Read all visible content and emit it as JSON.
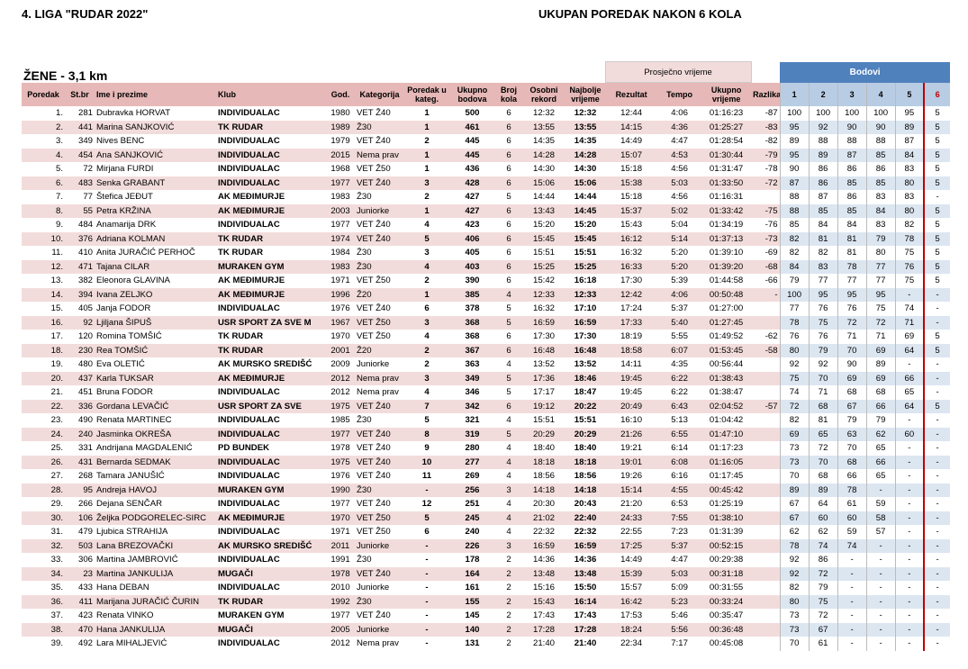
{
  "header": {
    "title": "4. LIGA  \"RUDAR 2022\"",
    "subtitle": "UKUPAN POREDAK NAKON 6 KOLA"
  },
  "table": {
    "section": "ŽENE - 3,1 km",
    "group_average": "Prosječno vrijeme",
    "group_points": "Bodovi",
    "columns": [
      "Poredak",
      "St.br",
      "Ime i prezime",
      "Klub",
      "God.",
      "Kategorija",
      "Poredak u kateg.",
      "Ukupno bodova",
      "Broj kola",
      "Osobni rekord",
      "Najbolje vrijeme",
      "Rezultat",
      "Tempo",
      "Ukupno vrijeme",
      "Razlika",
      "1",
      "2",
      "3",
      "4",
      "5",
      "6"
    ],
    "rows": [
      [
        "1.",
        "281",
        "Dubravka HORVAT",
        "INDIVIDUALAC",
        "1980",
        "VET Ž40",
        "1",
        "500",
        "6",
        "12:32",
        "12:32",
        "12:44",
        "4:06",
        "01:16:23",
        "-87",
        "100",
        "100",
        "100",
        "100",
        "95",
        "5"
      ],
      [
        "2.",
        "441",
        "Marina SANJKOVIĆ",
        "TK RUDAR",
        "1989",
        "Ž30",
        "1",
        "461",
        "6",
        "13:55",
        "13:55",
        "14:15",
        "4:36",
        "01:25:27",
        "-83",
        "95",
        "92",
        "90",
        "90",
        "89",
        "5"
      ],
      [
        "3.",
        "349",
        "Nives BENC",
        "INDIVIDUALAC",
        "1979",
        "VET Ž40",
        "2",
        "445",
        "6",
        "14:35",
        "14:35",
        "14:49",
        "4:47",
        "01:28:54",
        "-82",
        "89",
        "88",
        "88",
        "88",
        "87",
        "5"
      ],
      [
        "4.",
        "454",
        "Ana SANJKOVIĆ",
        "INDIVIDUALAC",
        "2015",
        "Nema prav",
        "1",
        "445",
        "6",
        "14:28",
        "14:28",
        "15:07",
        "4:53",
        "01:30:44",
        "-79",
        "95",
        "89",
        "87",
        "85",
        "84",
        "5"
      ],
      [
        "5.",
        "72",
        "Mirjana FURDI",
        "INDIVIDUALAC",
        "1968",
        "VET Ž50",
        "1",
        "436",
        "6",
        "14:30",
        "14:30",
        "15:18",
        "4:56",
        "01:31:47",
        "-78",
        "90",
        "86",
        "86",
        "86",
        "83",
        "5"
      ],
      [
        "6.",
        "483",
        "Senka GRABANT",
        "INDIVIDUALAC",
        "1977",
        "VET Ž40",
        "3",
        "428",
        "6",
        "15:06",
        "15:06",
        "15:38",
        "5:03",
        "01:33:50",
        "-72",
        "87",
        "86",
        "85",
        "85",
        "80",
        "5"
      ],
      [
        "7.",
        "77",
        "Štefica JEĐUT",
        "AK MEĐIMURJE",
        "1983",
        "Ž30",
        "2",
        "427",
        "5",
        "14:44",
        "14:44",
        "15:18",
        "4:56",
        "01:16:31",
        null,
        "88",
        "87",
        "86",
        "83",
        "83",
        "-"
      ],
      [
        "8.",
        "55",
        "Petra KRŽINA",
        "AK MEĐIMURJE",
        "2003",
        "Juniorke",
        "1",
        "427",
        "6",
        "13:43",
        "14:45",
        "15:37",
        "5:02",
        "01:33:42",
        "-75",
        "88",
        "85",
        "85",
        "84",
        "80",
        "5"
      ],
      [
        "9.",
        "484",
        "Anamarija DRK",
        "INDIVIDUALAC",
        "1977",
        "VET Ž40",
        "4",
        "423",
        "6",
        "15:20",
        "15:20",
        "15:43",
        "5:04",
        "01:34:19",
        "-76",
        "85",
        "84",
        "84",
        "83",
        "82",
        "5"
      ],
      [
        "10.",
        "376",
        "Adriana KOLMAN",
        "TK RUDAR",
        "1974",
        "VET Ž40",
        "5",
        "406",
        "6",
        "15:45",
        "15:45",
        "16:12",
        "5:14",
        "01:37:13",
        "-73",
        "82",
        "81",
        "81",
        "79",
        "78",
        "5"
      ],
      [
        "11.",
        "410",
        "Anita JURAČIĆ PERHOČ",
        "TK RUDAR",
        "1984",
        "Ž30",
        "3",
        "405",
        "6",
        "15:51",
        "15:51",
        "16:32",
        "5:20",
        "01:39:10",
        "-69",
        "82",
        "82",
        "81",
        "80",
        "75",
        "5"
      ],
      [
        "12.",
        "471",
        "Tajana CILAR",
        "MURAKEN GYM",
        "1983",
        "Ž30",
        "4",
        "403",
        "6",
        "15:25",
        "15:25",
        "16:33",
        "5:20",
        "01:39:20",
        "-68",
        "84",
        "83",
        "78",
        "77",
        "76",
        "5"
      ],
      [
        "13.",
        "382",
        "Eleonora GLAVINA",
        "AK MEĐIMURJE",
        "1971",
        "VET Ž50",
        "2",
        "390",
        "6",
        "15:42",
        "16:18",
        "17:30",
        "5:39",
        "01:44:58",
        "-66",
        "79",
        "77",
        "77",
        "77",
        "75",
        "5"
      ],
      [
        "14.",
        "394",
        "Ivana ZELJKO",
        "AK MEĐIMURJE",
        "1996",
        "Ž20",
        "1",
        "385",
        "4",
        "12:33",
        "12:33",
        "12:42",
        "4:06",
        "00:50:48",
        "-",
        "100",
        "95",
        "95",
        "95",
        "-",
        "-"
      ],
      [
        "15.",
        "405",
        "Janja FODOR",
        "INDIVIDUALAC",
        "1976",
        "VET Ž40",
        "6",
        "378",
        "5",
        "16:32",
        "17:10",
        "17:24",
        "5:37",
        "01:27:00",
        null,
        "77",
        "76",
        "76",
        "75",
        "74",
        "-"
      ],
      [
        "16.",
        "92",
        "Ljiljana ŠIPUŠ",
        "USR SPORT ZA SVE M",
        "1967",
        "VET Ž50",
        "3",
        "368",
        "5",
        "16:59",
        "16:59",
        "17:33",
        "5:40",
        "01:27:45",
        null,
        "78",
        "75",
        "72",
        "72",
        "71",
        "-"
      ],
      [
        "17.",
        "120",
        "Romina TOMŠIĆ",
        "TK RUDAR",
        "1970",
        "VET Ž50",
        "4",
        "368",
        "6",
        "17:30",
        "17:30",
        "18:19",
        "5:55",
        "01:49:52",
        "-62",
        "76",
        "76",
        "71",
        "71",
        "69",
        "5"
      ],
      [
        "18.",
        "230",
        "Rea TOMŠIĆ",
        "TK RUDAR",
        "2001",
        "Ž20",
        "2",
        "367",
        "6",
        "16:48",
        "16:48",
        "18:58",
        "6:07",
        "01:53:45",
        "-58",
        "80",
        "79",
        "70",
        "69",
        "64",
        "5"
      ],
      [
        "19.",
        "480",
        "Eva OLETIĆ",
        "AK MURSKO SREDIŠĆ",
        "2009",
        "Juniorke",
        "2",
        "363",
        "4",
        "13:52",
        "13:52",
        "14:11",
        "4:35",
        "00:56:44",
        null,
        "92",
        "92",
        "90",
        "89",
        "-",
        "-"
      ],
      [
        "20.",
        "437",
        "Karla TUKSAR",
        "AK MEĐIMURJE",
        "2012",
        "Nema prav",
        "3",
        "349",
        "5",
        "17:36",
        "18:46",
        "19:45",
        "6:22",
        "01:38:43",
        null,
        "75",
        "70",
        "69",
        "69",
        "66",
        "-"
      ],
      [
        "21.",
        "451",
        "Bruna FODOR",
        "INDIVIDUALAC",
        "2012",
        "Nema prav",
        "4",
        "346",
        "5",
        "17:17",
        "18:47",
        "19:45",
        "6:22",
        "01:38:47",
        null,
        "74",
        "71",
        "68",
        "68",
        "65",
        "-"
      ],
      [
        "22.",
        "336",
        "Gordana LEVAČIĆ",
        "USR SPORT ZA SVE",
        "1975",
        "VET Ž40",
        "7",
        "342",
        "6",
        "19:12",
        "20:22",
        "20:49",
        "6:43",
        "02:04:52",
        "-57",
        "72",
        "68",
        "67",
        "66",
        "64",
        "5"
      ],
      [
        "23.",
        "490",
        "Renata MARTINEC",
        "INDIVIDUALAC",
        "1985",
        "Ž30",
        "5",
        "321",
        "4",
        "15:51",
        "15:51",
        "16:10",
        "5:13",
        "01:04:42",
        null,
        "82",
        "81",
        "79",
        "79",
        "-",
        "-"
      ],
      [
        "24.",
        "240",
        "Jasminka OKREŠA",
        "INDIVIDUALAC",
        "1977",
        "VET Ž40",
        "8",
        "319",
        "5",
        "20:29",
        "20:29",
        "21:26",
        "6:55",
        "01:47:10",
        null,
        "69",
        "65",
        "63",
        "62",
        "60",
        "-"
      ],
      [
        "25.",
        "331",
        "Andrijana MAGDALENIĆ",
        "PD BUNDEK",
        "1978",
        "VET Ž40",
        "9",
        "280",
        "4",
        "18:40",
        "18:40",
        "19:21",
        "6:14",
        "01:17:23",
        null,
        "73",
        "72",
        "70",
        "65",
        "-",
        "-"
      ],
      [
        "26.",
        "431",
        "Bernarda SEDMAK",
        "INDIVIDUALAC",
        "1975",
        "VET Ž40",
        "10",
        "277",
        "4",
        "18:18",
        "18:18",
        "19:01",
        "6:08",
        "01:16:05",
        null,
        "73",
        "70",
        "68",
        "66",
        "-",
        "-"
      ],
      [
        "27.",
        "268",
        "Tamara JANUŠIĆ",
        "INDIVIDUALAC",
        "1976",
        "VET Ž40",
        "11",
        "269",
        "4",
        "18:56",
        "18:56",
        "19:26",
        "6:16",
        "01:17:45",
        null,
        "70",
        "68",
        "66",
        "65",
        "-",
        "-"
      ],
      [
        "28.",
        "95",
        "Andreja HAVOJ",
        "MURAKEN GYM",
        "1990",
        "Ž30",
        "-",
        "256",
        "3",
        "14:18",
        "14:18",
        "15:14",
        "4:55",
        "00:45:42",
        null,
        "89",
        "89",
        "78",
        "-",
        "-",
        "-"
      ],
      [
        "29.",
        "266",
        "Dejana SENČAR",
        "INDIVIDUALAC",
        "1977",
        "VET Ž40",
        "12",
        "251",
        "4",
        "20:30",
        "20:43",
        "21:20",
        "6:53",
        "01:25:19",
        null,
        "67",
        "64",
        "61",
        "59",
        "-",
        "-"
      ],
      [
        "30.",
        "106",
        "Željka PODGORELEC-SIRC",
        "AK MEĐIMURJE",
        "1970",
        "VET Ž50",
        "5",
        "245",
        "4",
        "21:02",
        "22:40",
        "24:33",
        "7:55",
        "01:38:10",
        null,
        "67",
        "60",
        "60",
        "58",
        "-",
        "-"
      ],
      [
        "31.",
        "479",
        "Ljubica STRAHIJA",
        "INDIVIDUALAC",
        "1971",
        "VET Ž50",
        "6",
        "240",
        "4",
        "22:32",
        "22:32",
        "22:55",
        "7:23",
        "01:31:39",
        null,
        "62",
        "62",
        "59",
        "57",
        "-",
        "-"
      ],
      [
        "32.",
        "503",
        "Lana BREZOVAČKI",
        "AK MURSKO SREDIŠĆ",
        "2011",
        "Juniorke",
        "-",
        "226",
        "3",
        "16:59",
        "16:59",
        "17:25",
        "5:37",
        "00:52:15",
        null,
        "78",
        "74",
        "74",
        "-",
        "-",
        "-"
      ],
      [
        "33.",
        "306",
        "Martina JAMBROVIĆ",
        "INDIVIDUALAC",
        "1991",
        "Ž30",
        "-",
        "178",
        "2",
        "14:36",
        "14:36",
        "14:49",
        "4:47",
        "00:29:38",
        null,
        "92",
        "86",
        "-",
        "-",
        "-",
        "-"
      ],
      [
        "34.",
        "23",
        "Martina JANKULIJA",
        "MUGAČI",
        "1978",
        "VET Ž40",
        "-",
        "164",
        "2",
        "13:48",
        "13:48",
        "15:39",
        "5:03",
        "00:31:18",
        null,
        "92",
        "72",
        "-",
        "-",
        "-",
        "-"
      ],
      [
        "35.",
        "433",
        "Hana DEBAN",
        "INDIVIDUALAC",
        "2010",
        "Juniorke",
        "-",
        "161",
        "2",
        "15:16",
        "15:50",
        "15:57",
        "5:09",
        "00:31:55",
        null,
        "82",
        "79",
        "-",
        "-",
        "-",
        "-"
      ],
      [
        "36.",
        "411",
        "Marijana JURAČIĆ ČURIN",
        "TK RUDAR",
        "1992",
        "Ž30",
        "-",
        "155",
        "2",
        "15:43",
        "16:14",
        "16:42",
        "5:23",
        "00:33:24",
        null,
        "80",
        "75",
        "-",
        "-",
        "-",
        "-"
      ],
      [
        "37.",
        "423",
        "Renata VINKO",
        "MURAKEN GYM",
        "1977",
        "VET Ž40",
        "-",
        "145",
        "2",
        "17:43",
        "17:43",
        "17:53",
        "5:46",
        "00:35:47",
        null,
        "73",
        "72",
        "-",
        "-",
        "-",
        "-"
      ],
      [
        "38.",
        "470",
        "Hana JANKULIJA",
        "MUGAČI",
        "2005",
        "Juniorke",
        "-",
        "140",
        "2",
        "17:28",
        "17:28",
        "18:24",
        "5:56",
        "00:36:48",
        null,
        "73",
        "67",
        "-",
        "-",
        "-",
        "-"
      ],
      [
        "39.",
        "492",
        "Lara MIHALJEVIĆ",
        "INDIVIDUALAC",
        "2012",
        "Nema prav",
        "-",
        "131",
        "2",
        "21:40",
        "21:40",
        "22:34",
        "7:17",
        "00:45:08",
        null,
        "70",
        "61",
        "-",
        "-",
        "-",
        "-"
      ]
    ]
  }
}
